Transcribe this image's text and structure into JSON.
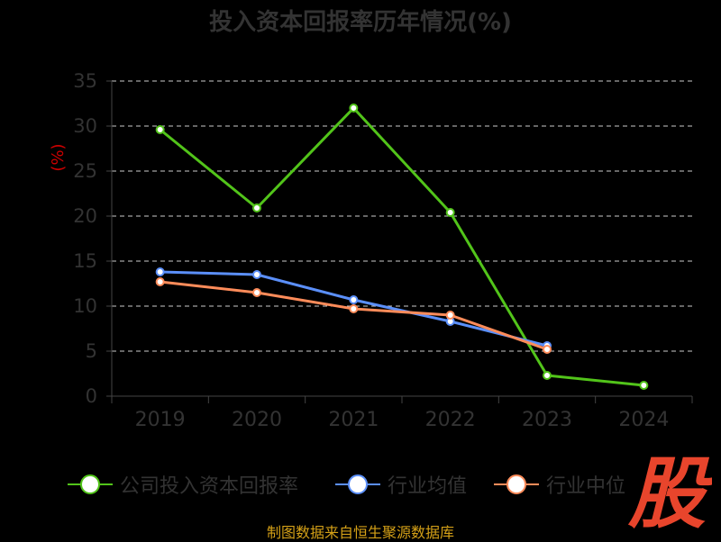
{
  "chart_data": {
    "type": "line",
    "title": "投入资本回报率历年情况(%)",
    "ylabel": "(%)",
    "xlabel": "",
    "categories": [
      "2019",
      "2020",
      "2021",
      "2022",
      "2023",
      "2024"
    ],
    "ylim": [
      0,
      35
    ],
    "yticks": [
      0,
      5,
      10,
      15,
      20,
      25,
      30,
      35
    ],
    "grid": true,
    "legend_position": "bottom",
    "series": [
      {
        "name": "公司投入资本回报率",
        "color": "#52c41a",
        "values": [
          29.6,
          20.9,
          32.0,
          20.4,
          2.3,
          1.2
        ]
      },
      {
        "name": "行业均值",
        "color": "#5b8ff9",
        "values": [
          13.8,
          13.5,
          10.7,
          8.3,
          5.6,
          null
        ]
      },
      {
        "name": "行业中位",
        "color": "#ff8c5a",
        "values": [
          12.7,
          11.5,
          9.7,
          9.0,
          5.2,
          null
        ]
      }
    ]
  },
  "footer": {
    "source_text": "制图数据来自恒生聚源数据库"
  },
  "watermark": {
    "text": "股",
    "color": "#e8452c"
  },
  "colors": {
    "axis": "#444444",
    "grid": "#cccccc",
    "tick_label": "#333333",
    "ylabel": "#cc0000"
  }
}
